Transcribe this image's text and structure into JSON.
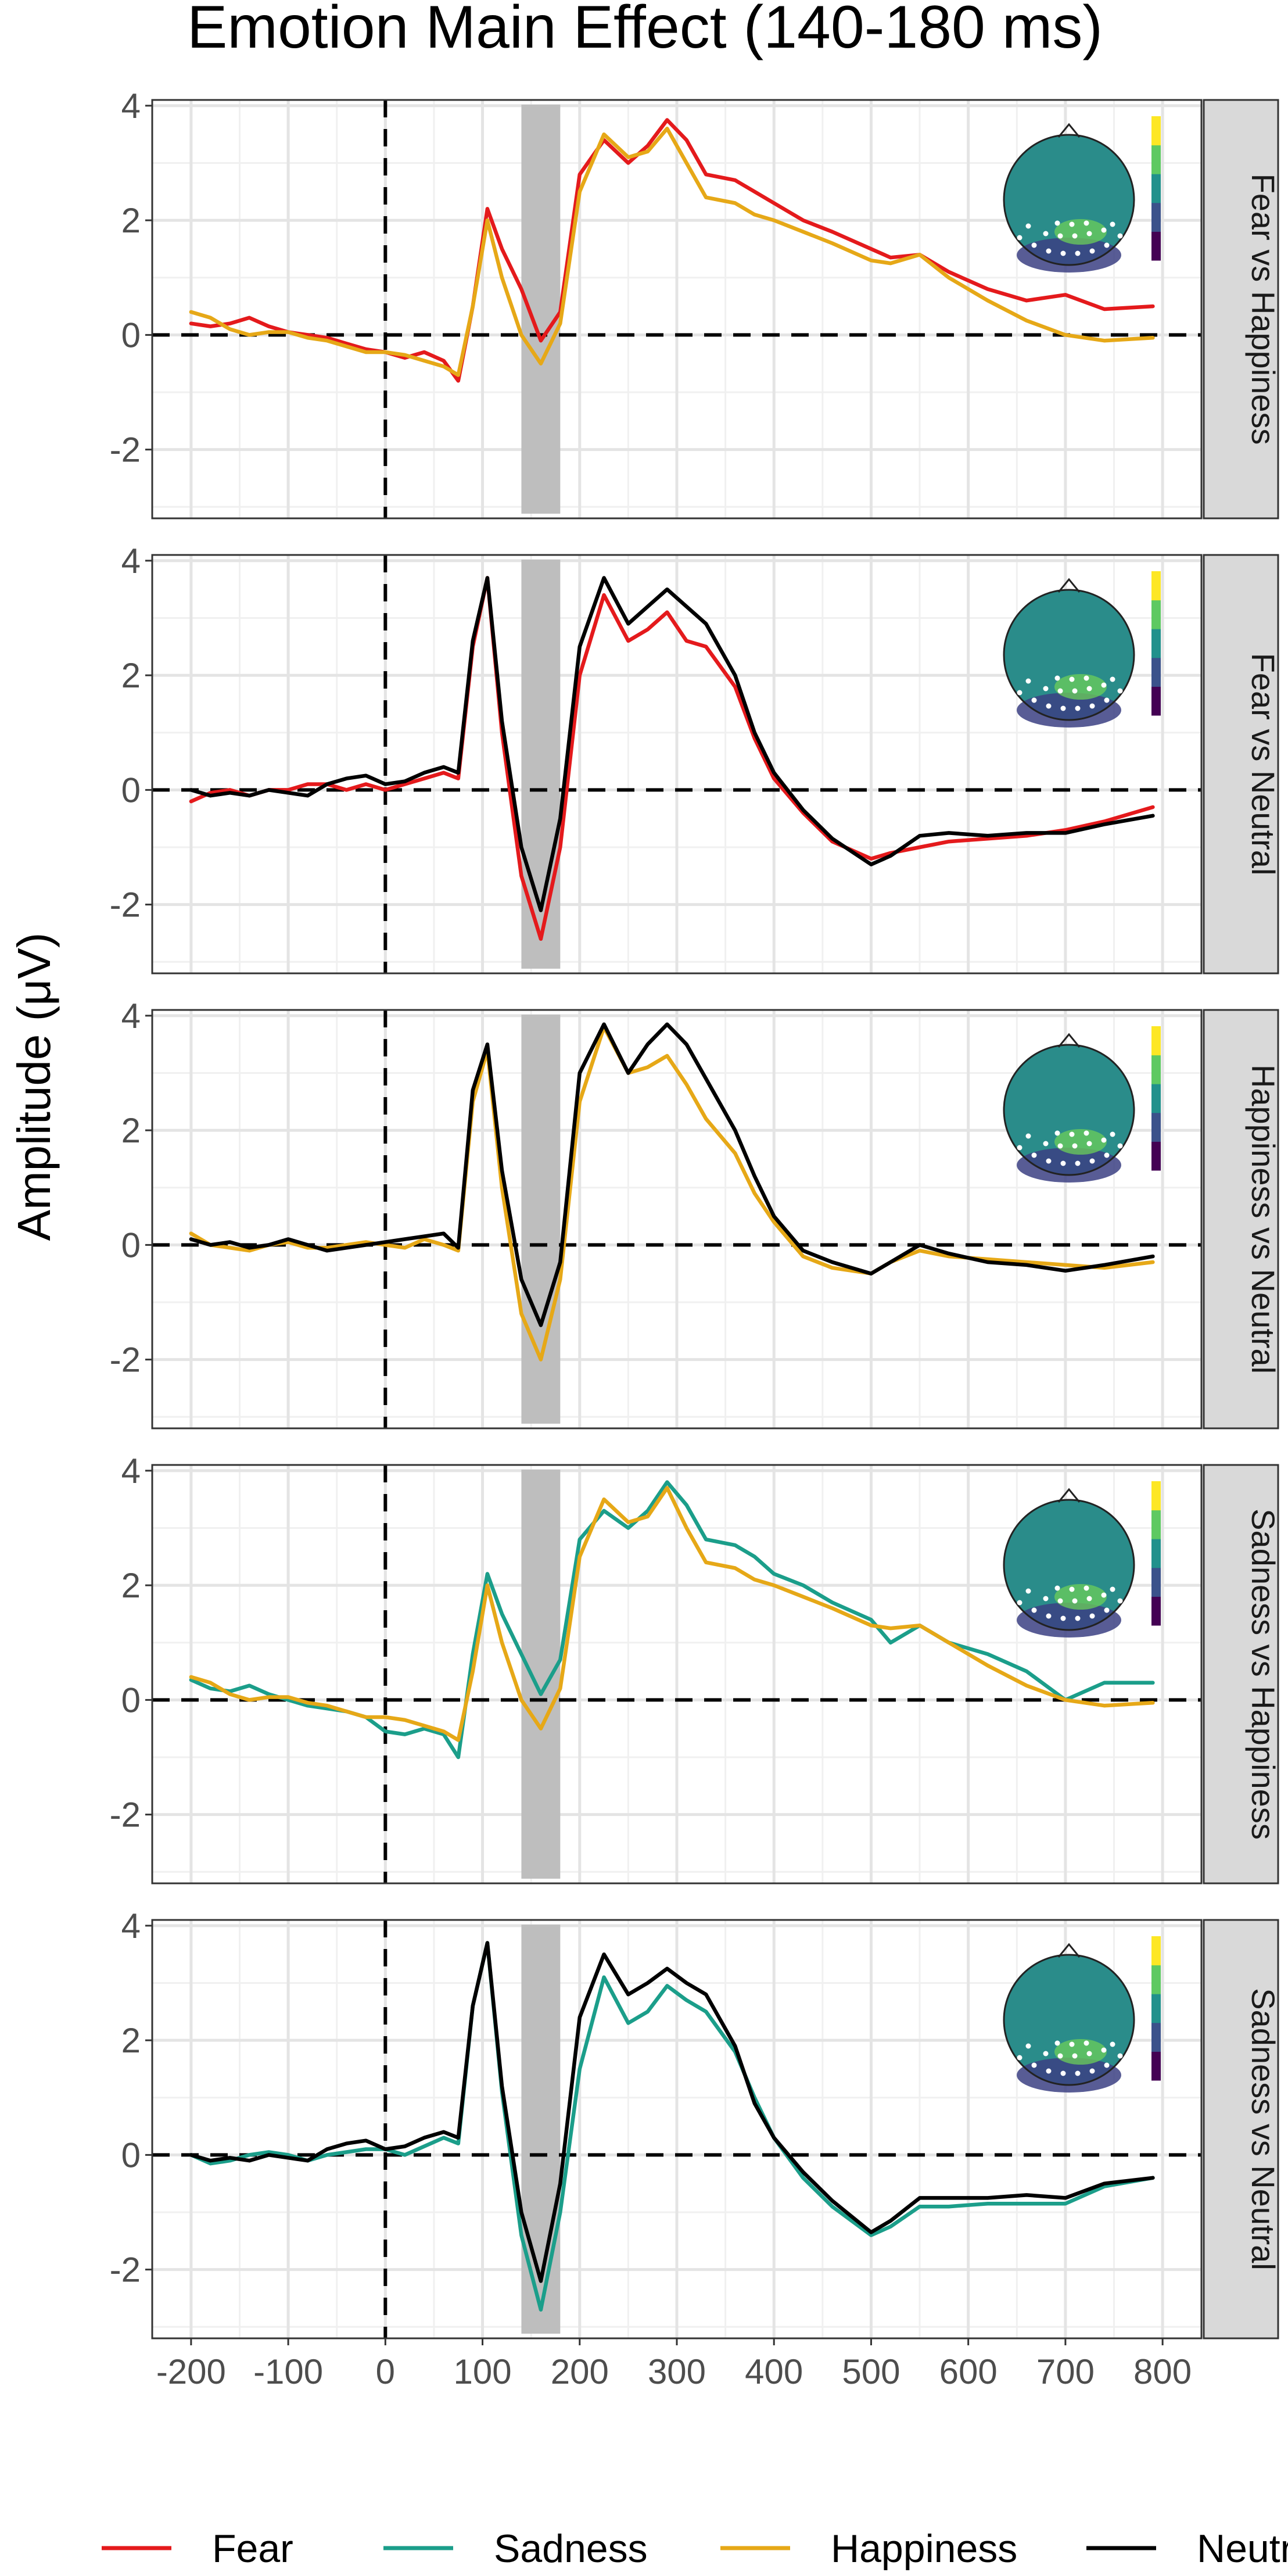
{
  "chart_data": {
    "type": "line",
    "title": "Emotion Main Effect (140-180 ms)",
    "xlabel": "",
    "ylabel": "Amplitude (μV)",
    "xlim": [
      -240,
      840
    ],
    "ylim": [
      -3.2,
      4.1
    ],
    "x_ticks": [
      -200,
      -100,
      0,
      100,
      200,
      300,
      400,
      500,
      600,
      700,
      800
    ],
    "x_tick_labels": [
      "-200",
      "-100",
      "0",
      "100",
      "200",
      "300",
      "400",
      "500",
      "600",
      "700",
      "800"
    ],
    "y_ticks": [
      -2,
      0,
      2,
      4
    ],
    "y_tick_labels": [
      "-2",
      "0",
      "2",
      "4"
    ],
    "highlight_window": [
      140,
      180
    ],
    "reference_lines": {
      "x": 0,
      "y": 0
    },
    "grid": true,
    "legend_position": "bottom",
    "legend": [
      {
        "label": "Fear",
        "color": "#e41a1c"
      },
      {
        "label": "Sadness",
        "color": "#1b9e8a"
      },
      {
        "label": "Happiness",
        "color": "#e6a817"
      },
      {
        "label": "Neutral",
        "color": "#000000"
      }
    ],
    "x": [
      -200,
      -180,
      -160,
      -140,
      -120,
      -100,
      -80,
      -60,
      -40,
      -20,
      0,
      20,
      40,
      60,
      75,
      90,
      105,
      120,
      140,
      160,
      180,
      200,
      225,
      250,
      270,
      290,
      310,
      330,
      360,
      380,
      400,
      430,
      460,
      500,
      520,
      550,
      580,
      620,
      660,
      700,
      740,
      790
    ],
    "panels": [
      {
        "strip": "Fear vs Happiness",
        "series": [
          {
            "name": "Fear",
            "color": "#e41a1c",
            "values": [
              0.2,
              0.15,
              0.2,
              0.3,
              0.15,
              0.05,
              0.0,
              -0.05,
              -0.15,
              -0.25,
              -0.3,
              -0.4,
              -0.3,
              -0.45,
              -0.8,
              0.5,
              2.2,
              1.5,
              0.8,
              -0.1,
              0.4,
              2.8,
              3.4,
              3.0,
              3.3,
              3.75,
              3.4,
              2.8,
              2.7,
              2.5,
              2.3,
              2.0,
              1.8,
              1.5,
              1.35,
              1.4,
              1.1,
              0.8,
              0.6,
              0.7,
              0.45,
              0.5
            ]
          },
          {
            "name": "Happiness",
            "color": "#e6a817",
            "values": [
              0.4,
              0.3,
              0.1,
              0.0,
              0.05,
              0.05,
              -0.05,
              -0.1,
              -0.2,
              -0.3,
              -0.3,
              -0.35,
              -0.45,
              -0.55,
              -0.7,
              0.5,
              2.0,
              1.0,
              0.0,
              -0.5,
              0.2,
              2.5,
              3.5,
              3.1,
              3.2,
              3.6,
              3.0,
              2.4,
              2.3,
              2.1,
              2.0,
              1.8,
              1.6,
              1.3,
              1.25,
              1.4,
              1.0,
              0.6,
              0.25,
              0.0,
              -0.1,
              -0.05
            ]
          }
        ]
      },
      {
        "strip": "Fear vs Neutral",
        "series": [
          {
            "name": "Fear",
            "color": "#e41a1c",
            "values": [
              -0.2,
              -0.05,
              0.0,
              -0.1,
              0.0,
              0.0,
              0.1,
              0.1,
              0.0,
              0.1,
              0.0,
              0.1,
              0.2,
              0.3,
              0.2,
              2.5,
              3.7,
              1.0,
              -1.5,
              -2.6,
              -1.0,
              2.0,
              3.4,
              2.6,
              2.8,
              3.1,
              2.6,
              2.5,
              1.8,
              0.9,
              0.2,
              -0.4,
              -0.9,
              -1.2,
              -1.1,
              -1.0,
              -0.9,
              -0.85,
              -0.8,
              -0.7,
              -0.55,
              -0.3
            ]
          },
          {
            "name": "Neutral",
            "color": "#000000",
            "values": [
              0.0,
              -0.1,
              -0.05,
              -0.1,
              0.0,
              -0.05,
              -0.1,
              0.1,
              0.2,
              0.25,
              0.1,
              0.15,
              0.3,
              0.4,
              0.3,
              2.6,
              3.7,
              1.2,
              -1.0,
              -2.1,
              -0.5,
              2.5,
              3.7,
              2.9,
              3.2,
              3.5,
              3.2,
              2.9,
              2.0,
              1.0,
              0.3,
              -0.35,
              -0.85,
              -1.3,
              -1.15,
              -0.8,
              -0.75,
              -0.8,
              -0.75,
              -0.75,
              -0.6,
              -0.45
            ]
          }
        ]
      },
      {
        "strip": "Happiness vs Neutral",
        "series": [
          {
            "name": "Happiness",
            "color": "#e6a817",
            "values": [
              0.2,
              0.0,
              -0.05,
              -0.1,
              0.0,
              0.05,
              -0.05,
              -0.05,
              0.0,
              0.05,
              0.0,
              -0.05,
              0.1,
              0.0,
              -0.1,
              2.5,
              3.4,
              1.0,
              -1.2,
              -2.0,
              -0.6,
              2.5,
              3.8,
              3.0,
              3.1,
              3.3,
              2.8,
              2.2,
              1.6,
              0.9,
              0.4,
              -0.2,
              -0.4,
              -0.5,
              -0.3,
              -0.1,
              -0.2,
              -0.25,
              -0.3,
              -0.35,
              -0.4,
              -0.3
            ]
          },
          {
            "name": "Neutral",
            "color": "#000000",
            "values": [
              0.1,
              0.0,
              0.05,
              -0.05,
              0.0,
              0.1,
              0.0,
              -0.1,
              -0.05,
              0.0,
              0.05,
              0.1,
              0.15,
              0.2,
              -0.05,
              2.7,
              3.5,
              1.3,
              -0.6,
              -1.4,
              -0.3,
              3.0,
              3.85,
              3.0,
              3.5,
              3.85,
              3.5,
              2.9,
              2.0,
              1.2,
              0.5,
              -0.1,
              -0.3,
              -0.5,
              -0.3,
              0.0,
              -0.15,
              -0.3,
              -0.35,
              -0.45,
              -0.35,
              -0.2
            ]
          }
        ]
      },
      {
        "strip": "Sadness vs Happiness",
        "series": [
          {
            "name": "Sadness",
            "color": "#1b9e8a",
            "values": [
              0.35,
              0.2,
              0.15,
              0.25,
              0.1,
              0.0,
              -0.1,
              -0.15,
              -0.2,
              -0.3,
              -0.55,
              -0.6,
              -0.5,
              -0.6,
              -1.0,
              0.8,
              2.2,
              1.5,
              0.8,
              0.1,
              0.7,
              2.8,
              3.3,
              3.0,
              3.3,
              3.8,
              3.4,
              2.8,
              2.7,
              2.5,
              2.2,
              2.0,
              1.7,
              1.4,
              1.0,
              1.3,
              1.0,
              0.8,
              0.5,
              0.0,
              0.3,
              0.3
            ]
          },
          {
            "name": "Happiness",
            "color": "#e6a817",
            "values": [
              0.4,
              0.3,
              0.1,
              0.0,
              0.05,
              0.05,
              -0.05,
              -0.1,
              -0.2,
              -0.3,
              -0.3,
              -0.35,
              -0.45,
              -0.55,
              -0.7,
              0.5,
              2.0,
              1.0,
              0.0,
              -0.5,
              0.2,
              2.5,
              3.5,
              3.1,
              3.2,
              3.7,
              3.0,
              2.4,
              2.3,
              2.1,
              2.0,
              1.8,
              1.6,
              1.3,
              1.25,
              1.3,
              1.0,
              0.6,
              0.25,
              0.0,
              -0.1,
              -0.05
            ]
          }
        ]
      },
      {
        "strip": "Sadness vs Neutral",
        "series": [
          {
            "name": "Sadness",
            "color": "#1b9e8a",
            "values": [
              0.0,
              -0.15,
              -0.1,
              0.0,
              0.05,
              0.0,
              -0.1,
              0.0,
              0.05,
              0.1,
              0.1,
              0.0,
              0.15,
              0.3,
              0.2,
              2.6,
              3.7,
              1.1,
              -1.4,
              -2.7,
              -1.0,
              1.5,
              3.1,
              2.3,
              2.5,
              2.95,
              2.7,
              2.5,
              1.8,
              1.0,
              0.3,
              -0.4,
              -0.9,
              -1.4,
              -1.25,
              -0.9,
              -0.9,
              -0.85,
              -0.85,
              -0.85,
              -0.55,
              -0.4
            ]
          },
          {
            "name": "Neutral",
            "color": "#000000",
            "values": [
              0.0,
              -0.1,
              -0.05,
              -0.1,
              0.0,
              -0.05,
              -0.1,
              0.1,
              0.2,
              0.25,
              0.1,
              0.15,
              0.3,
              0.4,
              0.3,
              2.6,
              3.7,
              1.2,
              -1.0,
              -2.2,
              -0.5,
              2.4,
              3.5,
              2.8,
              3.0,
              3.25,
              3.0,
              2.8,
              1.9,
              0.9,
              0.3,
              -0.3,
              -0.8,
              -1.35,
              -1.15,
              -0.75,
              -0.75,
              -0.75,
              -0.7,
              -0.75,
              -0.5,
              -0.4
            ]
          }
        ]
      }
    ]
  }
}
